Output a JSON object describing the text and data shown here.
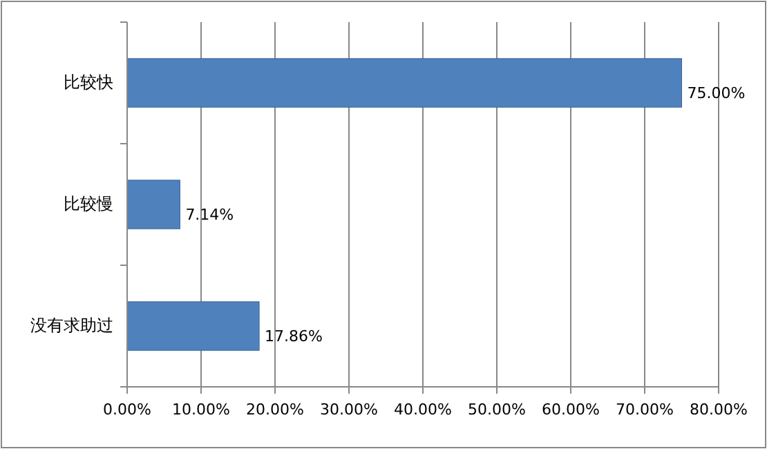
{
  "chart_data": {
    "type": "bar",
    "orientation": "horizontal",
    "categories": [
      "比较快",
      "比较慢",
      "没有求助过"
    ],
    "values": [
      75,
      7.14,
      17.86
    ],
    "color": "#4f81bd",
    "value_labels": [
      "75.00%",
      "7.14%",
      "17.86%"
    ],
    "xlim": [
      0,
      80
    ],
    "xticks": [
      {
        "value": 0,
        "label": "0.00%"
      },
      {
        "value": 10,
        "label": "10.00%"
      },
      {
        "value": 20,
        "label": "20.00%"
      },
      {
        "value": 30,
        "label": "30.00%"
      },
      {
        "value": 40,
        "label": "40.00%"
      },
      {
        "value": 50,
        "label": "50.00%"
      },
      {
        "value": 60,
        "label": "60.00%"
      },
      {
        "value": 70,
        "label": "70.00%"
      },
      {
        "value": 80,
        "label": "80.00%"
      }
    ],
    "grid": "x"
  }
}
